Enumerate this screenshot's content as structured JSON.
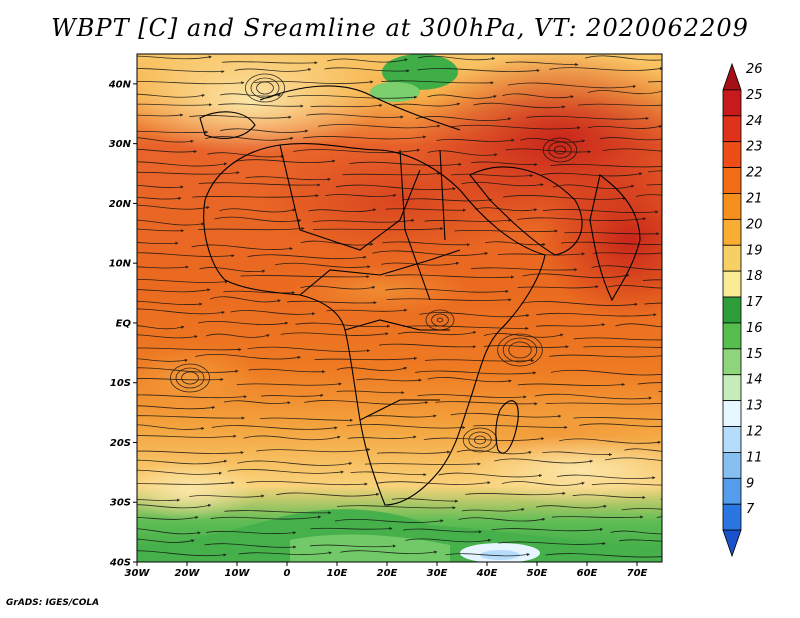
{
  "title": "WBPT [C] and Sreamline at 300hPa, VT: 2020062209",
  "footer": "GrADS: IGES/COLA",
  "map": {
    "lat_labels": [
      "40N",
      "30N",
      "20N",
      "10N",
      "EQ",
      "10S",
      "20S",
      "30S",
      "40S"
    ],
    "lon_labels": [
      "30W",
      "20W",
      "10W",
      "0",
      "10E",
      "20E",
      "30E",
      "40E",
      "50E",
      "60E",
      "70E"
    ],
    "lat_range": [
      -40,
      45
    ],
    "lon_range": [
      -30,
      75
    ],
    "field": "WBPT",
    "units": "C",
    "level": "300hPa",
    "valid_time": "2020062209"
  },
  "colorbar": {
    "labels": [
      "26",
      "25",
      "24",
      "23",
      "22",
      "21",
      "20",
      "19",
      "18",
      "17",
      "16",
      "15",
      "14",
      "13",
      "12",
      "11",
      "9",
      "7"
    ],
    "colors": [
      "#a50f15",
      "#c81a1c",
      "#e0321b",
      "#ee4d18",
      "#f46d16",
      "#f78f1c",
      "#f9ad33",
      "#f8cf63",
      "#faec94",
      "#2e9e3a",
      "#55be4c",
      "#8ed57c",
      "#c7ecbb",
      "#e6f7ff",
      "#b6dcfb",
      "#86c0f3",
      "#549ded",
      "#2a77e3",
      "#1a52cc"
    ]
  }
}
